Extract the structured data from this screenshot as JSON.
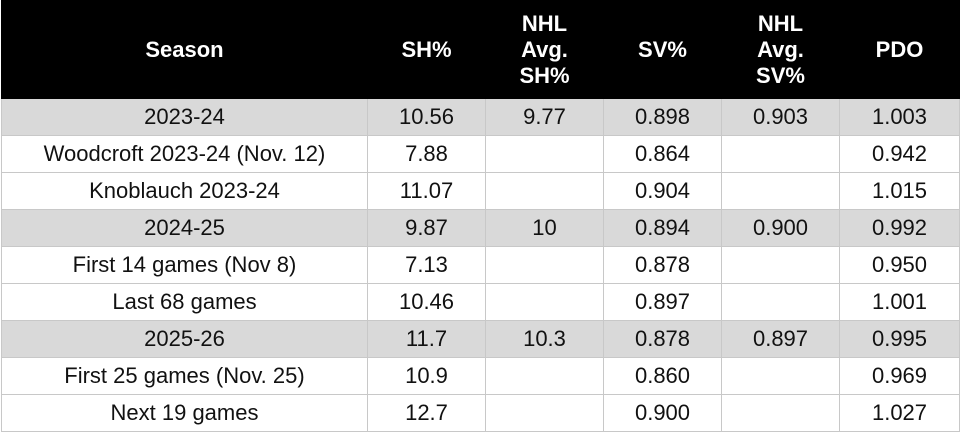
{
  "table": {
    "header": [
      "Season",
      "SH%",
      "NHL Avg. SH%",
      "SV%",
      "NHL Avg. SV%",
      "PDO"
    ],
    "rows": [
      [
        "2023-24",
        "10.56",
        "9.77",
        "0.898",
        "0.903",
        "1.003"
      ],
      [
        "Woodcroft 2023-24 (Nov. 12)",
        "7.88",
        null,
        "0.864",
        null,
        "0.942"
      ],
      [
        "Knoblauch 2023-24",
        "11.07",
        null,
        "0.904",
        null,
        "1.015"
      ],
      [
        "2024-25",
        "9.87",
        "10",
        "0.894",
        "0.900",
        "0.992"
      ],
      [
        "First 14 games (Nov 8)",
        "7.13",
        null,
        "0.878",
        null,
        "0.950"
      ],
      [
        "Last 68 games",
        "10.46",
        null,
        "0.897",
        null,
        "1.001"
      ],
      [
        "2025-26",
        "11.7",
        "10.3",
        "0.878",
        "0.897",
        "0.995"
      ],
      [
        "First 25 games (Nov. 25)",
        "10.9",
        null,
        "0.860",
        null,
        "0.969"
      ],
      [
        "Next 19 games",
        "12.7",
        null,
        "0.900",
        null,
        "1.027"
      ]
    ]
  }
}
